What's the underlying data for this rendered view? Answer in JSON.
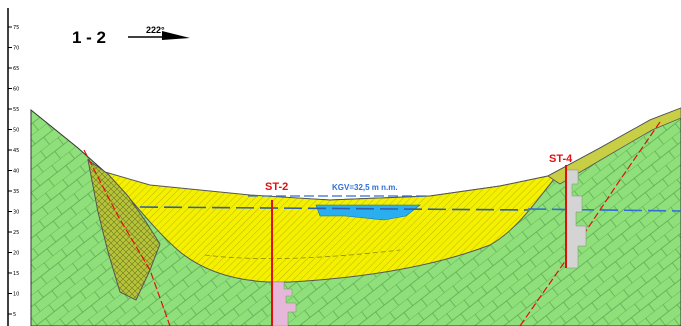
{
  "section_title": "1 - 2",
  "azimuth": "222°",
  "water_level_label": "KGV=32,5 m n.m.",
  "axis_tick_labels": [
    "5",
    "10",
    "15",
    "20",
    "25",
    "30",
    "35",
    "40",
    "45",
    "50",
    "55",
    "60",
    "65",
    "70",
    "75"
  ],
  "boreholes": [
    {
      "name": "ST-2"
    },
    {
      "name": "ST-4"
    }
  ],
  "colors": {
    "bedrock": "#8fe07a",
    "bedrock_lines": "#5aa852",
    "sediment": "#f3f000",
    "sediment_hatch": "#c9b400",
    "weathered": "#b7c43a",
    "water": "#29aef0",
    "water_level_line": "#2f6fd6",
    "fault_line": "#e01010",
    "borehole_st2_log": "#e7b7da",
    "borehole_st4_log": "#d4d4d4"
  }
}
